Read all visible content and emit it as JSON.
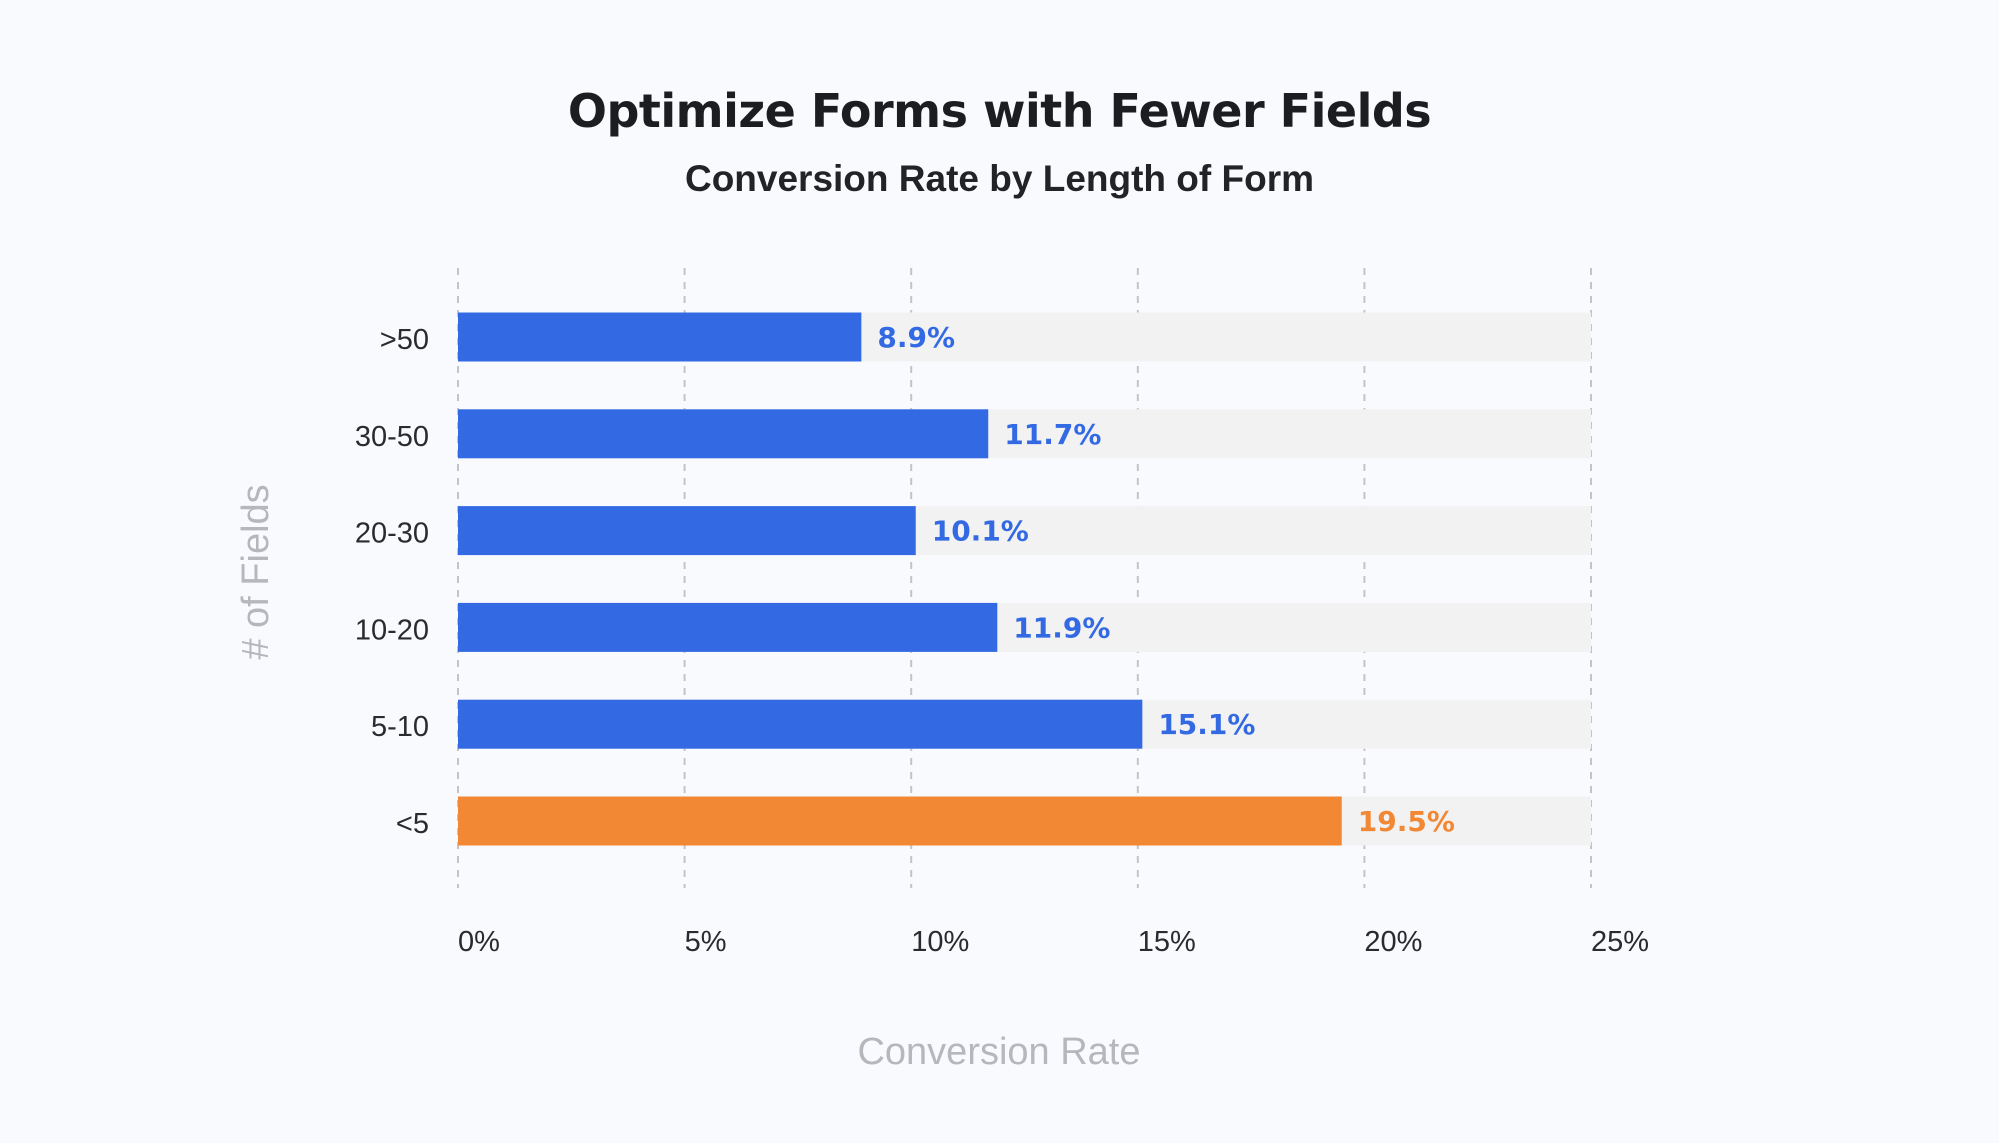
{
  "chart_data": {
    "type": "bar",
    "orientation": "horizontal",
    "title": "Optimize Forms with Fewer Fields",
    "subtitle": "Conversion Rate by Length of Form",
    "xlabel": "Conversion Rate",
    "ylabel": "# of Fields",
    "xlim": [
      0,
      25
    ],
    "xticks": [
      0,
      5,
      10,
      15,
      20,
      25
    ],
    "xtick_labels": [
      "0%",
      "5%",
      "10%",
      "15%",
      "20%",
      "25%"
    ],
    "grid": "vertical dashed",
    "categories": [
      ">50",
      "30-50",
      "20-30",
      "10-20",
      "5-10",
      "<5"
    ],
    "values": [
      8.9,
      11.7,
      10.1,
      11.9,
      15.1,
      19.5
    ],
    "value_labels": [
      "8.9%",
      "11.7%",
      "10.1%",
      "11.9%",
      "15.1%",
      "19.5%"
    ],
    "highlight_category": "<5",
    "colors": {
      "bar": "#336ae4",
      "highlight": "#f28834",
      "track": "#f2f2f2",
      "grid": "#c4c4c4",
      "background": "#f9fafd"
    }
  }
}
